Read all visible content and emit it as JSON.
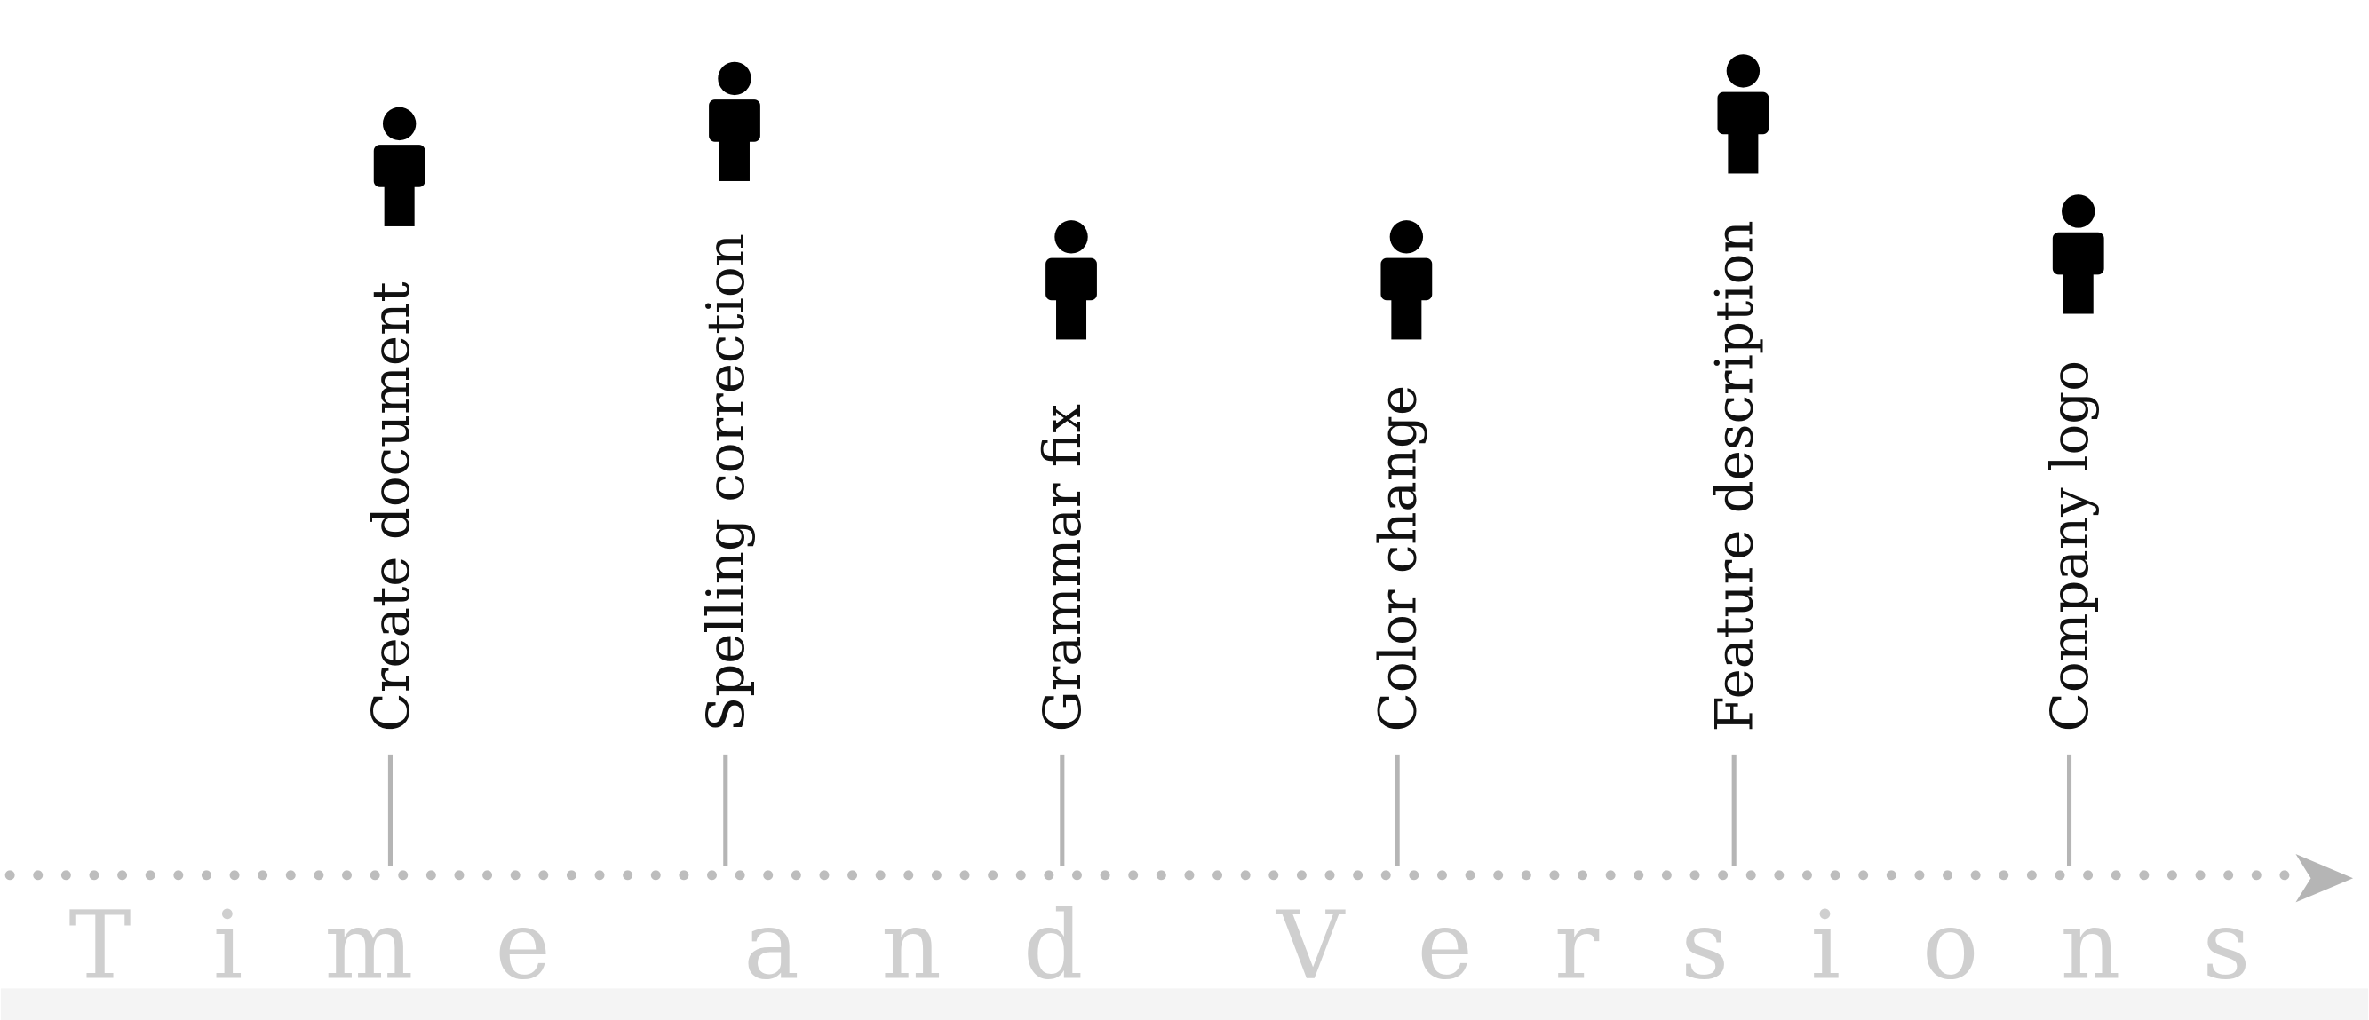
{
  "axis_label": "Time and Versions",
  "events": [
    {
      "label": "Create document"
    },
    {
      "label": "Spelling correction"
    },
    {
      "label": "Grammar fix"
    },
    {
      "label": "Color change"
    },
    {
      "label": "Feature description"
    },
    {
      "label": "Company logo"
    }
  ]
}
